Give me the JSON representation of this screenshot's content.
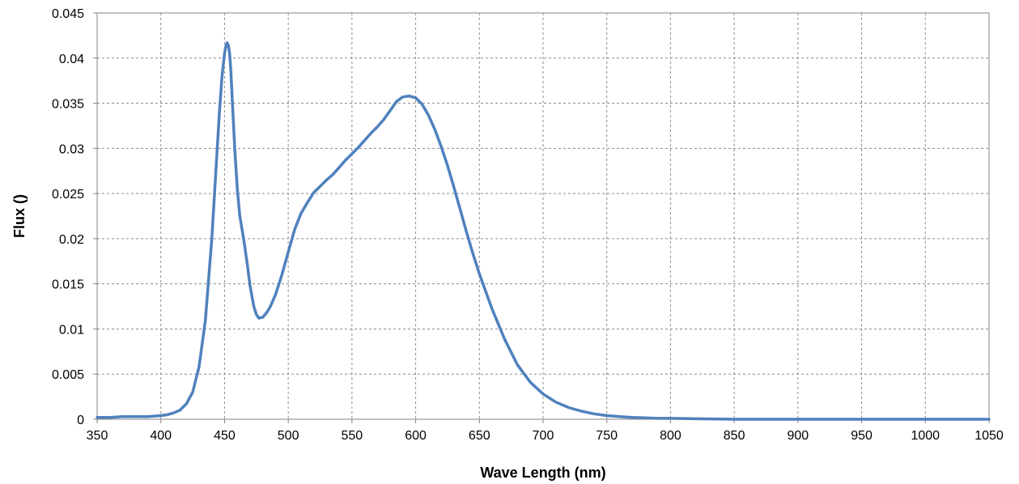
{
  "chart_data": {
    "type": "line",
    "title": "",
    "xlabel": "Wave Length (nm)",
    "ylabel": "Flux ()",
    "xlim": [
      350,
      1050
    ],
    "ylim": [
      0,
      0.045
    ],
    "xticks": [
      "350",
      "400",
      "450",
      "500",
      "550",
      "600",
      "650",
      "700",
      "750",
      "800",
      "850",
      "900",
      "950",
      "1000",
      "1050"
    ],
    "yticks": [
      "0",
      "0.005",
      "0.01",
      "0.015",
      "0.02",
      "0.025",
      "0.03",
      "0.035",
      "0.04",
      "0.045"
    ],
    "grid": true,
    "legend": "none",
    "series": [
      {
        "color": "#4f81bd",
        "x": [
          350,
          360,
          370,
          380,
          390,
          400,
          405,
          410,
          415,
          420,
          425,
          430,
          435,
          440,
          443,
          446,
          448,
          450,
          451,
          452,
          453,
          454,
          455,
          456,
          458,
          460,
          462,
          465,
          468,
          470,
          473,
          475,
          477,
          480,
          483,
          486,
          490,
          495,
          500,
          505,
          510,
          515,
          520,
          525,
          530,
          535,
          540,
          545,
          550,
          555,
          560,
          565,
          570,
          575,
          580,
          585,
          590,
          595,
          600,
          605,
          610,
          615,
          620,
          625,
          630,
          635,
          640,
          645,
          650,
          660,
          670,
          680,
          690,
          700,
          710,
          720,
          730,
          740,
          750,
          760,
          770,
          780,
          790,
          800,
          820,
          850,
          900,
          950,
          1000,
          1050
        ],
        "y": [
          0.0002,
          0.0002,
          0.0003,
          0.0003,
          0.0003,
          0.0004,
          0.0005,
          0.0007,
          0.001,
          0.0017,
          0.003,
          0.0058,
          0.011,
          0.02,
          0.027,
          0.034,
          0.038,
          0.0405,
          0.0413,
          0.0417,
          0.0414,
          0.0405,
          0.0385,
          0.0355,
          0.03,
          0.0255,
          0.0225,
          0.02,
          0.017,
          0.0148,
          0.0125,
          0.0116,
          0.0112,
          0.0113,
          0.0118,
          0.0125,
          0.0138,
          0.016,
          0.0185,
          0.021,
          0.0228,
          0.024,
          0.0251,
          0.0258,
          0.0265,
          0.0271,
          0.0279,
          0.0287,
          0.0294,
          0.0301,
          0.0309,
          0.0317,
          0.0324,
          0.0332,
          0.0342,
          0.0352,
          0.0357,
          0.0358,
          0.0356,
          0.0349,
          0.0337,
          0.0321,
          0.0302,
          0.0281,
          0.0257,
          0.0232,
          0.0207,
          0.0183,
          0.0161,
          0.0122,
          0.0088,
          0.006,
          0.0041,
          0.0028,
          0.0019,
          0.0013,
          0.0009,
          0.0006,
          0.0004,
          0.0003,
          0.0002,
          0.00015,
          0.0001,
          0.0001,
          5e-05,
          0.0,
          0.0,
          0.0,
          0.0,
          0.0
        ]
      }
    ]
  }
}
